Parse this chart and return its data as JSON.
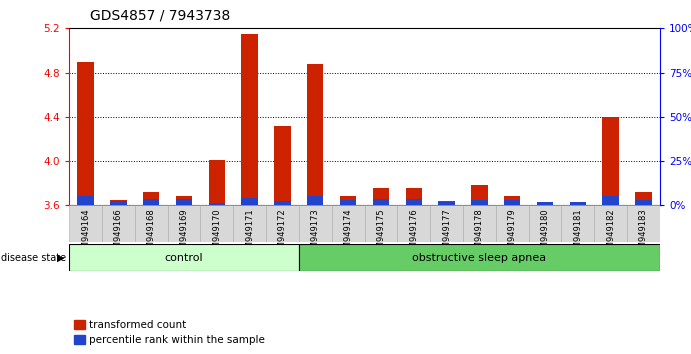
{
  "title": "GDS4857 / 7943738",
  "samples": [
    "GSM949164",
    "GSM949166",
    "GSM949168",
    "GSM949169",
    "GSM949170",
    "GSM949171",
    "GSM949172",
    "GSM949173",
    "GSM949174",
    "GSM949175",
    "GSM949176",
    "GSM949177",
    "GSM949178",
    "GSM949179",
    "GSM949180",
    "GSM949181",
    "GSM949182",
    "GSM949183"
  ],
  "red_values": [
    4.9,
    3.65,
    3.72,
    3.68,
    4.01,
    5.15,
    4.32,
    4.88,
    3.68,
    3.76,
    3.76,
    3.64,
    3.78,
    3.68,
    3.62,
    3.62,
    4.4,
    3.72
  ],
  "blue_values": [
    3.68,
    3.64,
    3.66,
    3.66,
    3.62,
    3.67,
    3.64,
    3.68,
    3.65,
    3.66,
    3.66,
    3.63,
    3.65,
    3.65,
    3.63,
    3.63,
    3.68,
    3.65
  ],
  "ymin": 3.6,
  "ymax": 5.2,
  "yticks_left": [
    3.6,
    4.0,
    4.4,
    4.8,
    5.2
  ],
  "right_yticks": [
    0,
    25,
    50,
    75,
    100
  ],
  "right_yticklabels": [
    "0%",
    "25%",
    "50%",
    "75%",
    "100%"
  ],
  "control_count": 7,
  "group1_label": "control",
  "group2_label": "obstructive sleep apnea",
  "group1_color": "#ccffcc",
  "group2_color": "#66cc66",
  "bar_color_red": "#cc2200",
  "bar_color_blue": "#2244cc",
  "bar_width": 0.5,
  "tick_label_fontsize": 6.0,
  "title_fontsize": 10,
  "legend_label_red": "transformed count",
  "legend_label_blue": "percentile rank within the sample",
  "disease_state_label": "disease state"
}
